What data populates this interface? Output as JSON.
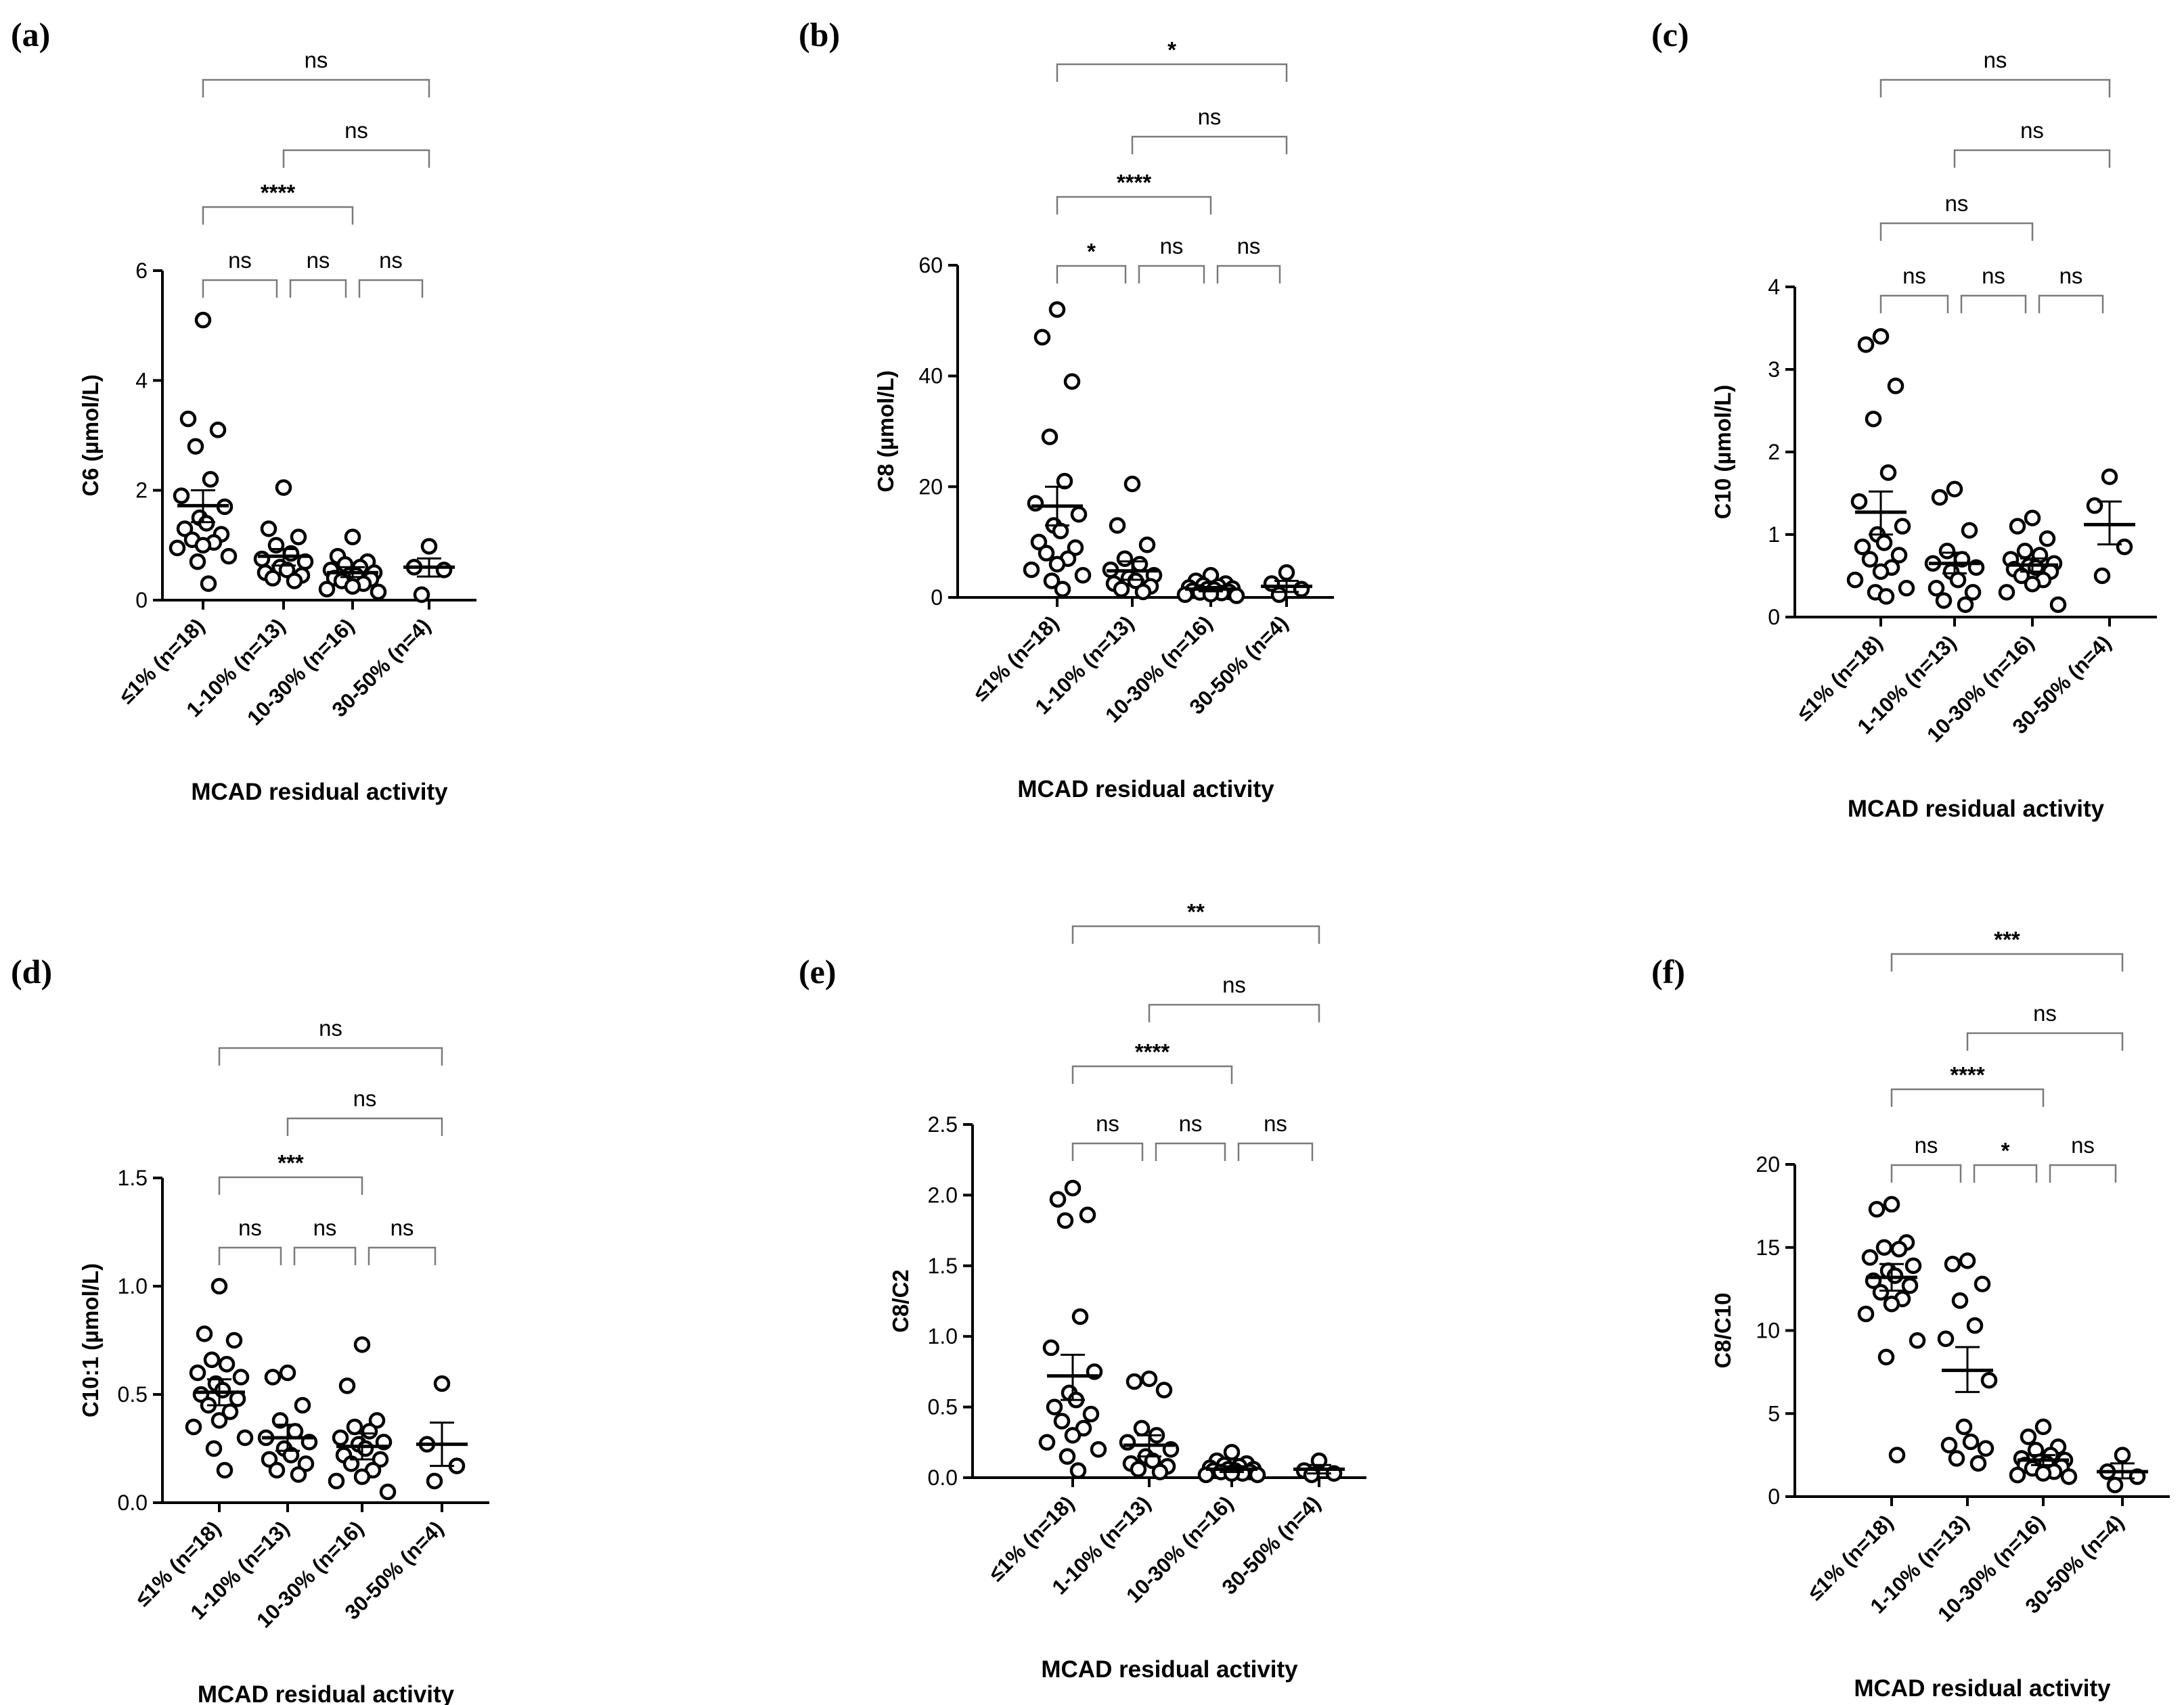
{
  "chart_data": [
    {
      "type": "scatter",
      "panel": "(a)",
      "ylabel": "C6 (µmol/L)",
      "xlabel": "MCAD residual activity",
      "categories": [
        "≤1% (n=18)",
        "1-10% (n=13)",
        "10-30% (n=16)",
        "30-50% (n=4)"
      ],
      "ylim": [
        0,
        6
      ],
      "yticks": [
        "0",
        "2",
        "4",
        "6"
      ],
      "series": [
        {
          "name": "≤1% (n=18)",
          "values": [
            5.1,
            3.3,
            3.1,
            2.8,
            2.2,
            1.9,
            1.7,
            1.5,
            1.4,
            1.3,
            1.2,
            1.1,
            1.05,
            1.0,
            0.95,
            0.8,
            0.7,
            0.3
          ],
          "mean": 1.72,
          "sem_low": 1.42,
          "sem_high": 2.0
        },
        {
          "name": "1-10% (n=13)",
          "values": [
            2.05,
            1.3,
            1.15,
            1.0,
            0.85,
            0.75,
            0.7,
            0.6,
            0.55,
            0.5,
            0.45,
            0.4,
            0.35
          ],
          "mean": 0.8,
          "sem_low": 0.63,
          "sem_high": 0.93
        },
        {
          "name": "10-30% (n=16)",
          "values": [
            1.15,
            0.8,
            0.7,
            0.65,
            0.6,
            0.55,
            0.5,
            0.45,
            0.45,
            0.4,
            0.38,
            0.35,
            0.3,
            0.25,
            0.2,
            0.15
          ],
          "mean": 0.5,
          "sem_low": 0.42,
          "sem_high": 0.6
        },
        {
          "name": "30-50% (n=4)",
          "values": [
            0.98,
            0.6,
            0.55,
            0.1
          ],
          "mean": 0.6,
          "sem_low": 0.43,
          "sem_high": 0.76
        }
      ],
      "brackets": [
        {
          "from": 0,
          "to": 3,
          "label": "ns"
        },
        {
          "from": 1,
          "to": 3,
          "label": "ns"
        },
        {
          "from": 0,
          "to": 2,
          "label": "****"
        },
        {
          "from": 0,
          "to": 1,
          "label": "ns"
        },
        {
          "from": 1,
          "to": 2,
          "label": "ns"
        },
        {
          "from": 2,
          "to": 3,
          "label": "ns"
        }
      ]
    },
    {
      "type": "scatter",
      "panel": "(b)",
      "ylabel": "C8 (µmol/L)",
      "xlabel": "MCAD residual activity",
      "categories": [
        "≤1% (n=18)",
        "1-10% (n=13)",
        "10-30% (n=16)",
        "30-50% (n=4)"
      ],
      "ylim": [
        0,
        60
      ],
      "yticks": [
        "0",
        "20",
        "40",
        "60"
      ],
      "series": [
        {
          "name": "≤1% (n=18)",
          "values": [
            52,
            47,
            39,
            29,
            21,
            17,
            15,
            13,
            12,
            10,
            9,
            8,
            7,
            6,
            5,
            4,
            3,
            1.5
          ],
          "mean": 16.5,
          "sem_low": 13.0,
          "sem_high": 20.0
        },
        {
          "name": "1-10% (n=13)",
          "values": [
            20.5,
            13,
            9.5,
            7,
            6,
            5,
            4,
            3.5,
            3,
            2.5,
            2,
            1.5,
            1
          ],
          "mean": 4.8,
          "sem_low": 3.2,
          "sem_high": 6.5
        },
        {
          "name": "10-30% (n=16)",
          "values": [
            4,
            3,
            2.5,
            2.2,
            2,
            1.8,
            1.6,
            1.5,
            1.4,
            1.2,
            1.0,
            0.9,
            0.8,
            0.6,
            0.5,
            0.3
          ],
          "mean": 1.5,
          "sem_low": 1.1,
          "sem_high": 1.9
        },
        {
          "name": "30-50% (n=4)",
          "values": [
            4.5,
            2.5,
            1.5,
            0.5
          ],
          "mean": 2.0,
          "sem_low": 1.0,
          "sem_high": 3.0
        }
      ],
      "brackets": [
        {
          "from": 0,
          "to": 3,
          "label": "*"
        },
        {
          "from": 1,
          "to": 3,
          "label": "ns"
        },
        {
          "from": 0,
          "to": 2,
          "label": "****"
        },
        {
          "from": 0,
          "to": 1,
          "label": "*"
        },
        {
          "from": 1,
          "to": 2,
          "label": "ns"
        },
        {
          "from": 2,
          "to": 3,
          "label": "ns"
        }
      ]
    },
    {
      "type": "scatter",
      "panel": "(c)",
      "ylabel": "C10 (µmol/L)",
      "xlabel": "MCAD residual activity",
      "categories": [
        "≤1% (n=18)",
        "1-10% (n=13)",
        "10-30% (n=16)",
        "30-50% (n=4)"
      ],
      "ylim": [
        0,
        4
      ],
      "yticks": [
        "0",
        "1",
        "2",
        "3",
        "4"
      ],
      "series": [
        {
          "name": "≤1% (n=18)",
          "values": [
            3.4,
            3.3,
            2.8,
            2.4,
            1.75,
            1.4,
            1.1,
            1.0,
            0.9,
            0.85,
            0.75,
            0.7,
            0.6,
            0.55,
            0.45,
            0.35,
            0.3,
            0.25
          ],
          "mean": 1.27,
          "sem_low": 1.0,
          "sem_high": 1.52
        },
        {
          "name": "1-10% (n=13)",
          "values": [
            1.55,
            1.45,
            1.05,
            0.8,
            0.7,
            0.65,
            0.6,
            0.55,
            0.45,
            0.35,
            0.3,
            0.2,
            0.15
          ],
          "mean": 0.65,
          "sem_low": 0.53,
          "sem_high": 0.78
        },
        {
          "name": "10-30% (n=16)",
          "values": [
            1.2,
            1.1,
            0.95,
            0.8,
            0.75,
            0.7,
            0.65,
            0.62,
            0.6,
            0.58,
            0.55,
            0.5,
            0.45,
            0.4,
            0.3,
            0.15
          ],
          "mean": 0.63,
          "sem_low": 0.55,
          "sem_high": 0.71
        },
        {
          "name": "30-50% (n=4)",
          "values": [
            1.7,
            1.35,
            0.85,
            0.5
          ],
          "mean": 1.12,
          "sem_low": 0.88,
          "sem_high": 1.4
        }
      ],
      "brackets": [
        {
          "from": 0,
          "to": 3,
          "label": "ns"
        },
        {
          "from": 1,
          "to": 3,
          "label": "ns"
        },
        {
          "from": 0,
          "to": 2,
          "label": "ns"
        },
        {
          "from": 0,
          "to": 1,
          "label": "ns"
        },
        {
          "from": 1,
          "to": 2,
          "label": "ns"
        },
        {
          "from": 2,
          "to": 3,
          "label": "ns"
        }
      ]
    },
    {
      "type": "scatter",
      "panel": "(d)",
      "ylabel": "C10:1 (µmol/L)",
      "xlabel": "MCAD residual activity",
      "categories": [
        "≤1% (n=18)",
        "1-10% (n=13)",
        "10-30% (n=16)",
        "30-50% (n=4)"
      ],
      "ylim": [
        0,
        1.5
      ],
      "yticks": [
        "0.0",
        "0.5",
        "1.0",
        "1.5"
      ],
      "series": [
        {
          "name": "≤1% (n=18)",
          "values": [
            1.0,
            0.78,
            0.75,
            0.66,
            0.64,
            0.6,
            0.58,
            0.55,
            0.52,
            0.5,
            0.48,
            0.45,
            0.42,
            0.38,
            0.35,
            0.3,
            0.25,
            0.15
          ],
          "mean": 0.51,
          "sem_low": 0.45,
          "sem_high": 0.57
        },
        {
          "name": "1-10% (n=13)",
          "values": [
            0.6,
            0.58,
            0.45,
            0.38,
            0.33,
            0.3,
            0.28,
            0.25,
            0.22,
            0.2,
            0.18,
            0.15,
            0.13
          ],
          "mean": 0.3,
          "sem_low": 0.24,
          "sem_high": 0.36
        },
        {
          "name": "10-30% (n=16)",
          "values": [
            0.73,
            0.54,
            0.38,
            0.35,
            0.33,
            0.3,
            0.28,
            0.27,
            0.25,
            0.22,
            0.2,
            0.18,
            0.15,
            0.12,
            0.1,
            0.05
          ],
          "mean": 0.26,
          "sem_low": 0.2,
          "sem_high": 0.32
        },
        {
          "name": "30-50% (n=4)",
          "values": [
            0.55,
            0.27,
            0.17,
            0.1
          ],
          "mean": 0.27,
          "sem_low": 0.17,
          "sem_high": 0.37
        }
      ],
      "brackets": [
        {
          "from": 0,
          "to": 3,
          "label": "ns"
        },
        {
          "from": 1,
          "to": 3,
          "label": "ns"
        },
        {
          "from": 0,
          "to": 2,
          "label": "***"
        },
        {
          "from": 0,
          "to": 1,
          "label": "ns"
        },
        {
          "from": 1,
          "to": 2,
          "label": "ns"
        },
        {
          "from": 2,
          "to": 3,
          "label": "ns"
        }
      ]
    },
    {
      "type": "scatter",
      "panel": "(e)",
      "ylabel": "C8/C2",
      "xlabel": "MCAD residual activity",
      "categories": [
        "≤1% (n=18)",
        "1-10% (n=13)",
        "10-30% (n=16)",
        "30-50% (n=4)"
      ],
      "ylim": [
        0,
        2.5
      ],
      "yticks": [
        "0.0",
        "0.5",
        "1.0",
        "1.5",
        "2.0",
        "2.5"
      ],
      "series": [
        {
          "name": "≤1% (n=18)",
          "values": [
            2.05,
            1.97,
            1.86,
            1.82,
            1.14,
            0.92,
            0.75,
            0.6,
            0.55,
            0.5,
            0.45,
            0.4,
            0.35,
            0.3,
            0.25,
            0.2,
            0.15,
            0.05
          ],
          "mean": 0.72,
          "sem_low": 0.55,
          "sem_high": 0.87
        },
        {
          "name": "1-10% (n=13)",
          "values": [
            0.7,
            0.68,
            0.62,
            0.35,
            0.3,
            0.25,
            0.2,
            0.15,
            0.12,
            0.1,
            0.08,
            0.06,
            0.04
          ],
          "mean": 0.23,
          "sem_low": 0.15,
          "sem_high": 0.3
        },
        {
          "name": "10-30% (n=16)",
          "values": [
            0.18,
            0.12,
            0.1,
            0.09,
            0.08,
            0.07,
            0.06,
            0.06,
            0.05,
            0.05,
            0.04,
            0.04,
            0.03,
            0.03,
            0.02,
            0.02
          ],
          "mean": 0.06,
          "sem_low": 0.04,
          "sem_high": 0.08
        },
        {
          "name": "30-50% (n=4)",
          "values": [
            0.12,
            0.05,
            0.03,
            0.02
          ],
          "mean": 0.06,
          "sem_low": 0.03,
          "sem_high": 0.09
        }
      ],
      "brackets": [
        {
          "from": 0,
          "to": 3,
          "label": "**"
        },
        {
          "from": 1,
          "to": 3,
          "label": "ns"
        },
        {
          "from": 0,
          "to": 2,
          "label": "****"
        },
        {
          "from": 0,
          "to": 1,
          "label": "ns"
        },
        {
          "from": 1,
          "to": 2,
          "label": "ns"
        },
        {
          "from": 2,
          "to": 3,
          "label": "ns"
        }
      ]
    },
    {
      "type": "scatter",
      "panel": "(f)",
      "ylabel": "C8/C10",
      "xlabel": "MCAD residual activity",
      "categories": [
        "≤1% (n=18)",
        "1-10% (n=13)",
        "10-30% (n=16)",
        "30-50% (n=4)"
      ],
      "ylim": [
        0,
        20
      ],
      "yticks": [
        "0",
        "5",
        "10",
        "15",
        "20"
      ],
      "series": [
        {
          "name": "≤1% (n=18)",
          "values": [
            17.6,
            17.3,
            15.3,
            15.0,
            14.9,
            14.4,
            13.9,
            13.6,
            13.3,
            13.0,
            12.7,
            12.3,
            11.9,
            11.6,
            11.0,
            9.4,
            8.4,
            2.5
          ],
          "mean": 13.2,
          "sem_low": 12.4,
          "sem_high": 14.0
        },
        {
          "name": "1-10% (n=13)",
          "values": [
            14.2,
            14.0,
            12.8,
            11.8,
            10.3,
            9.5,
            7.0,
            4.2,
            3.3,
            3.1,
            2.9,
            2.3,
            2.0
          ],
          "mean": 7.6,
          "sem_low": 6.3,
          "sem_high": 9.0
        },
        {
          "name": "10-30% (n=16)",
          "values": [
            4.2,
            3.6,
            3.0,
            2.8,
            2.5,
            2.3,
            2.2,
            2.1,
            2.0,
            1.9,
            1.8,
            1.7,
            1.5,
            1.4,
            1.3,
            1.2
          ],
          "mean": 2.2,
          "sem_low": 1.9,
          "sem_high": 2.5
        },
        {
          "name": "30-50% (n=4)",
          "values": [
            2.5,
            1.5,
            1.2,
            0.7
          ],
          "mean": 1.5,
          "sem_low": 1.1,
          "sem_high": 2.0
        }
      ],
      "brackets": [
        {
          "from": 0,
          "to": 3,
          "label": "***"
        },
        {
          "from": 1,
          "to": 3,
          "label": "ns"
        },
        {
          "from": 0,
          "to": 2,
          "label": "****"
        },
        {
          "from": 0,
          "to": 1,
          "label": "ns"
        },
        {
          "from": 1,
          "to": 2,
          "label": "*"
        },
        {
          "from": 2,
          "to": 3,
          "label": "ns"
        }
      ]
    }
  ]
}
